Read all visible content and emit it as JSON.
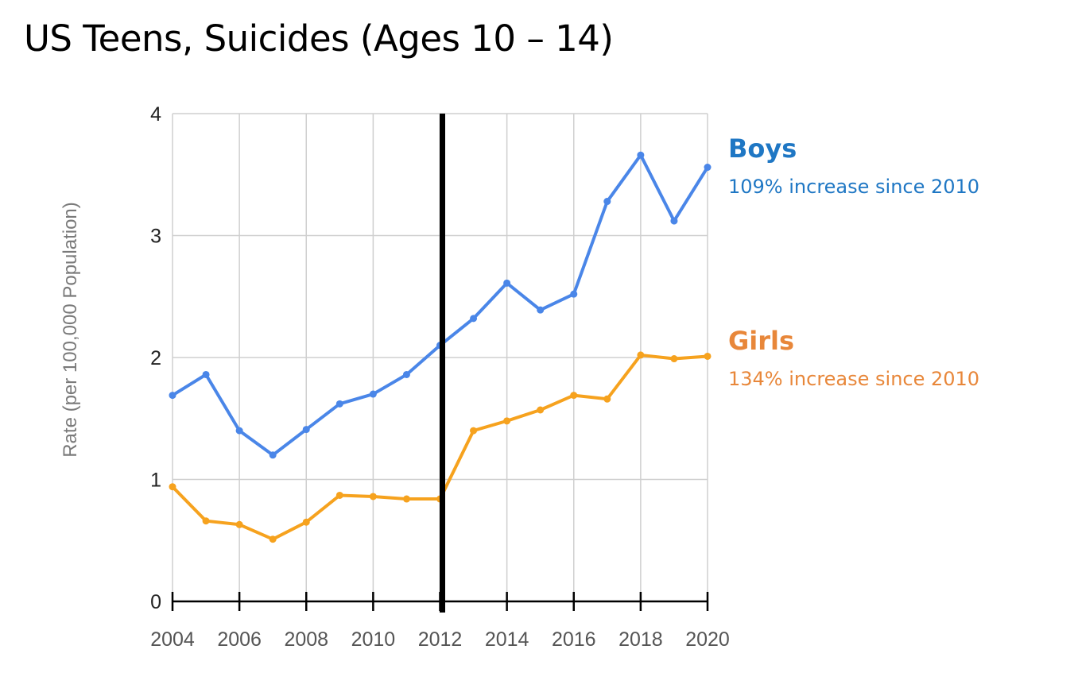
{
  "title": "US Teens, Suicides (Ages 10 – 14)",
  "colors": {
    "boys_line": "#4a86e8",
    "girls_line": "#f6a21e",
    "boys_text": "#1f77c4",
    "girls_text": "#e8873a",
    "marker_line": "#000000",
    "grid": "#cfcfcf",
    "tick_text": "#555555",
    "axis_label": "#7a7a7a"
  },
  "annotations": {
    "boys": {
      "name": "Boys",
      "note": "109% increase since 2010"
    },
    "girls": {
      "name": "Girls",
      "note": "134% increase since 2010"
    }
  },
  "chart_data": {
    "type": "line",
    "title": "US Teens, Suicides (Ages 10 – 14)",
    "xlabel": "",
    "ylabel": "Rate (per 100,000 Population)",
    "x": [
      2004,
      2005,
      2006,
      2007,
      2008,
      2009,
      2010,
      2011,
      2012,
      2013,
      2014,
      2015,
      2016,
      2017,
      2018,
      2019,
      2020
    ],
    "xticks": [
      2004,
      2006,
      2008,
      2010,
      2012,
      2014,
      2016,
      2018,
      2020
    ],
    "xtick_labels": [
      "2004",
      "2006",
      "2008",
      "2010",
      "2012",
      "2014",
      "2016",
      "2018",
      "2020"
    ],
    "yticks": [
      0,
      1,
      2,
      3,
      4
    ],
    "ytick_labels": [
      "0",
      "1",
      "2",
      "3",
      "4"
    ],
    "xlim": [
      2004,
      2020
    ],
    "ylim": [
      0,
      4
    ],
    "grid": true,
    "vertical_marker": 2012,
    "series": [
      {
        "name": "Boys",
        "color": "#4a86e8",
        "values": [
          1.69,
          1.86,
          1.4,
          1.2,
          1.41,
          1.62,
          1.7,
          1.86,
          2.1,
          2.32,
          2.61,
          2.39,
          2.52,
          3.28,
          3.66,
          3.12,
          3.56
        ]
      },
      {
        "name": "Girls",
        "color": "#f6a21e",
        "values": [
          0.94,
          0.66,
          0.63,
          0.51,
          0.65,
          0.87,
          0.86,
          0.84,
          0.84,
          1.4,
          1.48,
          1.57,
          1.69,
          1.66,
          2.02,
          1.99,
          2.01
        ]
      }
    ]
  }
}
